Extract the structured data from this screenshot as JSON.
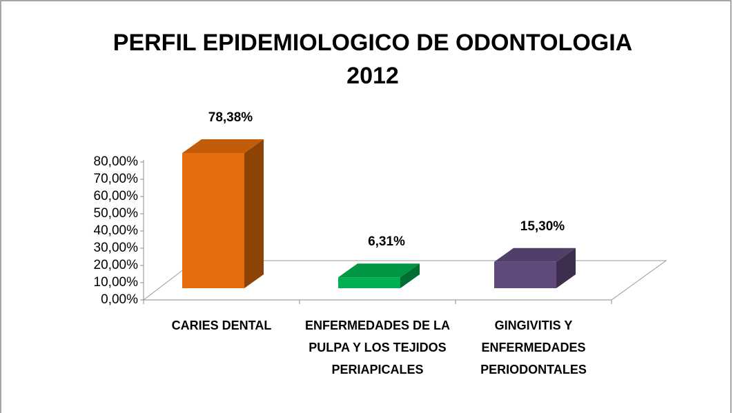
{
  "chart_data": {
    "type": "bar3d",
    "title": "PERFIL EPIDEMIOLOGICO DE ODONTOLOGIA 2012",
    "categories": [
      "CARIES DENTAL",
      "ENFERMEDADES DE LA PULPA Y LOS TEJIDOS PERIAPICALES",
      "GINGIVITIS Y ENFERMEDADES PERIODONTALES"
    ],
    "values": [
      78.38,
      6.31,
      15.3
    ],
    "value_labels": [
      "78,38%",
      "6,31%",
      "15,30%"
    ],
    "colors": [
      "#e46c0a",
      "#00b050",
      "#604a7b"
    ],
    "ylim": [
      0,
      80
    ],
    "yticks": [
      {
        "value": 0,
        "label": "0,00%"
      },
      {
        "value": 10,
        "label": "10,00%"
      },
      {
        "value": 20,
        "label": "20,00%"
      },
      {
        "value": 30,
        "label": "30,00%"
      },
      {
        "value": 40,
        "label": "40,00%"
      },
      {
        "value": 50,
        "label": "50,00%"
      },
      {
        "value": 60,
        "label": "60,00%"
      },
      {
        "value": 70,
        "label": "70,00%"
      },
      {
        "value": 80,
        "label": "80,00%"
      }
    ],
    "grid": false
  }
}
